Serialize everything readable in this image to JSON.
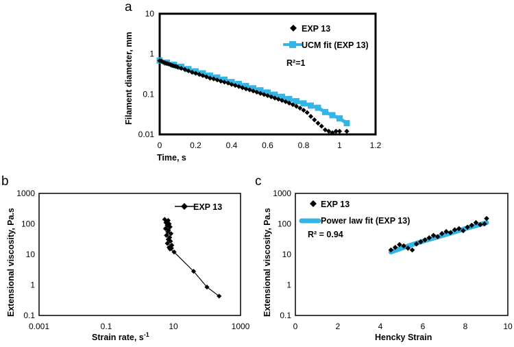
{
  "chart_data": [
    {
      "id": "a",
      "panel_label": "a",
      "type": "scatter",
      "xlabel": "Time, s",
      "ylabel": "Filament diameter, mm",
      "xlim": [
        0,
        1.2
      ],
      "ylim": [
        0.01,
        10
      ],
      "yscale": "log",
      "xticks": [
        "0",
        "0.2",
        "0.4",
        "0.6",
        "0.8",
        "1",
        "1.2"
      ],
      "yticks": [
        "0.01",
        "0.1",
        "1",
        "10"
      ],
      "annotation": "R²=1",
      "series": [
        {
          "name": "EXP 13",
          "style": "diamond",
          "color": "#000000",
          "x": [
            0.0,
            0.01,
            0.02,
            0.03,
            0.04,
            0.05,
            0.06,
            0.07,
            0.08,
            0.09,
            0.1,
            0.12,
            0.14,
            0.16,
            0.18,
            0.2,
            0.22,
            0.24,
            0.26,
            0.28,
            0.3,
            0.32,
            0.34,
            0.36,
            0.38,
            0.4,
            0.42,
            0.44,
            0.46,
            0.48,
            0.5,
            0.52,
            0.54,
            0.56,
            0.58,
            0.6,
            0.62,
            0.64,
            0.66,
            0.68,
            0.7,
            0.72,
            0.74,
            0.76,
            0.78,
            0.8,
            0.82,
            0.84,
            0.86,
            0.88,
            0.9,
            0.92,
            0.94,
            0.96,
            0.98,
            1.0,
            1.04
          ],
          "y": [
            0.68,
            0.66,
            0.62,
            0.6,
            0.58,
            0.56,
            0.54,
            0.52,
            0.5,
            0.49,
            0.47,
            0.44,
            0.41,
            0.38,
            0.35,
            0.33,
            0.31,
            0.29,
            0.27,
            0.25,
            0.24,
            0.225,
            0.21,
            0.2,
            0.19,
            0.175,
            0.165,
            0.155,
            0.145,
            0.135,
            0.128,
            0.12,
            0.112,
            0.105,
            0.098,
            0.092,
            0.086,
            0.08,
            0.075,
            0.07,
            0.065,
            0.06,
            0.055,
            0.05,
            0.045,
            0.04,
            0.035,
            0.028,
            0.023,
            0.019,
            0.016,
            0.013,
            0.012,
            0.011,
            0.012,
            0.012,
            0.012
          ]
        },
        {
          "name": "UCM fit (EXP 13)",
          "style": "square-line",
          "color": "#33b5e5",
          "x": [
            0.0,
            0.04,
            0.08,
            0.12,
            0.16,
            0.2,
            0.24,
            0.28,
            0.32,
            0.36,
            0.4,
            0.44,
            0.48,
            0.52,
            0.56,
            0.6,
            0.64,
            0.68,
            0.72,
            0.76,
            0.8,
            0.84,
            0.88,
            0.92,
            0.96,
            1.0,
            1.04
          ],
          "y": [
            0.69,
            0.61,
            0.54,
            0.48,
            0.42,
            0.37,
            0.33,
            0.29,
            0.26,
            0.23,
            0.2,
            0.18,
            0.16,
            0.14,
            0.125,
            0.11,
            0.097,
            0.086,
            0.076,
            0.067,
            0.059,
            0.052,
            0.046,
            0.036,
            0.03,
            0.025,
            0.019
          ]
        }
      ]
    },
    {
      "id": "b",
      "panel_label": "b",
      "type": "line",
      "xlabel": "Strain rate, s-1",
      "ylabel": "Extensional viscosity, Pa.s",
      "xscale": "log",
      "yscale": "log",
      "xlim": [
        0.001,
        1000
      ],
      "ylim": [
        0.1,
        1000
      ],
      "xticks": [
        "0.001",
        "0.1",
        "10",
        "1000"
      ],
      "yticks": [
        "0.1",
        "1",
        "10",
        "100",
        "1000"
      ],
      "series": [
        {
          "name": "EXP 13",
          "style": "diamond-line",
          "color": "#000000",
          "x": [
            5.5,
            7.0,
            6.0,
            7.5,
            6.5,
            8.0,
            5.8,
            7.2,
            6.8,
            8.5,
            6.2,
            7.8,
            7.0,
            8.2,
            6.6,
            9.0,
            7.4,
            8.8,
            7.9,
            10.5,
            40,
            100,
            230
          ],
          "y": [
            140,
            130,
            110,
            100,
            90,
            80,
            70,
            62,
            55,
            48,
            42,
            36,
            31,
            27,
            23,
            20,
            17,
            16,
            15,
            12,
            2.8,
            0.85,
            0.43
          ]
        }
      ]
    },
    {
      "id": "c",
      "panel_label": "c",
      "type": "scatter",
      "xlabel": "Hencky Strain",
      "ylabel": "Extensional viscosity, Pa.s",
      "yscale": "log",
      "xlim": [
        0,
        10
      ],
      "ylim": [
        0.1,
        1000
      ],
      "xticks": [
        "0",
        "2",
        "4",
        "6",
        "8",
        "10"
      ],
      "yticks": [
        "0.1",
        "1",
        "10",
        "100",
        "1000"
      ],
      "annotation": "R² = 0.94",
      "series": [
        {
          "name": "EXP 13",
          "style": "diamond",
          "color": "#000000",
          "x": [
            4.5,
            4.7,
            4.9,
            5.1,
            5.3,
            5.5,
            5.7,
            5.9,
            6.1,
            6.3,
            6.5,
            6.7,
            6.9,
            7.1,
            7.3,
            7.5,
            7.7,
            7.9,
            8.1,
            8.3,
            8.5,
            8.7,
            8.9,
            9.0
          ],
          "y": [
            14,
            17,
            21,
            19,
            16,
            14,
            22,
            26,
            30,
            35,
            42,
            38,
            48,
            56,
            52,
            64,
            70,
            60,
            78,
            90,
            110,
            95,
            100,
            150
          ]
        },
        {
          "name": "Power law fit (EXP 13)",
          "style": "thick-line",
          "color": "#33b5e5",
          "x": [
            4.5,
            5.0,
            5.5,
            6.0,
            6.5,
            7.0,
            7.5,
            8.0,
            8.5,
            9.0
          ],
          "y": [
            12,
            16,
            21,
            27,
            34,
            43,
            55,
            70,
            88,
            110
          ]
        }
      ]
    }
  ]
}
